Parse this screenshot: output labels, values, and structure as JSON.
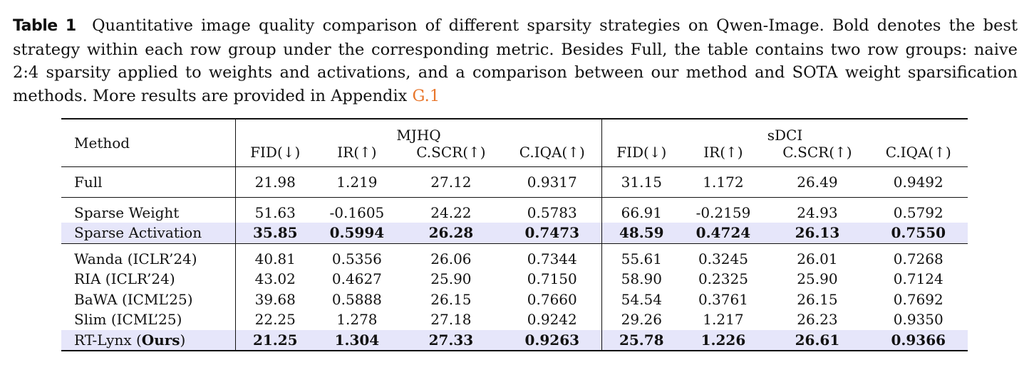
{
  "caption": {
    "label": "Table 1",
    "text": "Quantitative image quality comparison of different sparsity strategies on Qwen-Image. Bold denotes the best strategy within each row group under the corresponding metric. Besides Full, the table contains two row groups: naive 2:4 sparsity applied to weights and activations, and a comparison between our method and SOTA weight sparsification methods. More results are provided in Appendix",
    "ref": "G.1"
  },
  "table": {
    "method_header": "Method",
    "groups": [
      "MJHQ",
      "sDCI"
    ],
    "metrics": [
      "FID(↓)",
      "IR(↑)",
      "C.SCR(↑)",
      "C.IQA(↑)",
      "FID(↓)",
      "IR(↑)",
      "C.SCR(↑)",
      "C.IQA(↑)"
    ],
    "full": {
      "method": "Full",
      "values": [
        "21.98",
        "1.219",
        "27.12",
        "0.9317",
        "31.15",
        "1.172",
        "26.49",
        "0.9492"
      ]
    },
    "naive": [
      {
        "method": "Sparse Weight",
        "values": [
          "51.63",
          "-0.1605",
          "24.22",
          "0.5783",
          "66.91",
          "-0.2159",
          "24.93",
          "0.5792"
        ]
      },
      {
        "method": "Sparse Activation",
        "values": [
          "35.85",
          "0.5994",
          "26.28",
          "0.7473",
          "48.59",
          "0.4724",
          "26.13",
          "0.7550"
        ]
      }
    ],
    "sota": [
      {
        "method": "Wanda (ICLR’24)",
        "values": [
          "40.81",
          "0.5356",
          "26.06",
          "0.7344",
          "55.61",
          "0.3245",
          "26.01",
          "0.7268"
        ]
      },
      {
        "method": "RIA (ICLR’24)",
        "values": [
          "43.02",
          "0.4627",
          "25.90",
          "0.7150",
          "58.90",
          "0.2325",
          "25.90",
          "0.7124"
        ]
      },
      {
        "method": "BaWA (ICML’25)",
        "values": [
          "39.68",
          "0.5888",
          "26.15",
          "0.7660",
          "54.54",
          "0.3761",
          "26.15",
          "0.7692"
        ]
      },
      {
        "method": "Slim (ICML’25)",
        "values": [
          "22.25",
          "1.278",
          "27.18",
          "0.9242",
          "29.26",
          "1.217",
          "26.23",
          "0.9350"
        ]
      }
    ],
    "ours": {
      "method_prefix": "RT-Lynx (",
      "method_bold": "Ours",
      "method_suffix": ")",
      "values": [
        "21.25",
        "1.304",
        "27.33",
        "0.9263",
        "25.78",
        "1.226",
        "26.61",
        "0.9366"
      ]
    }
  }
}
